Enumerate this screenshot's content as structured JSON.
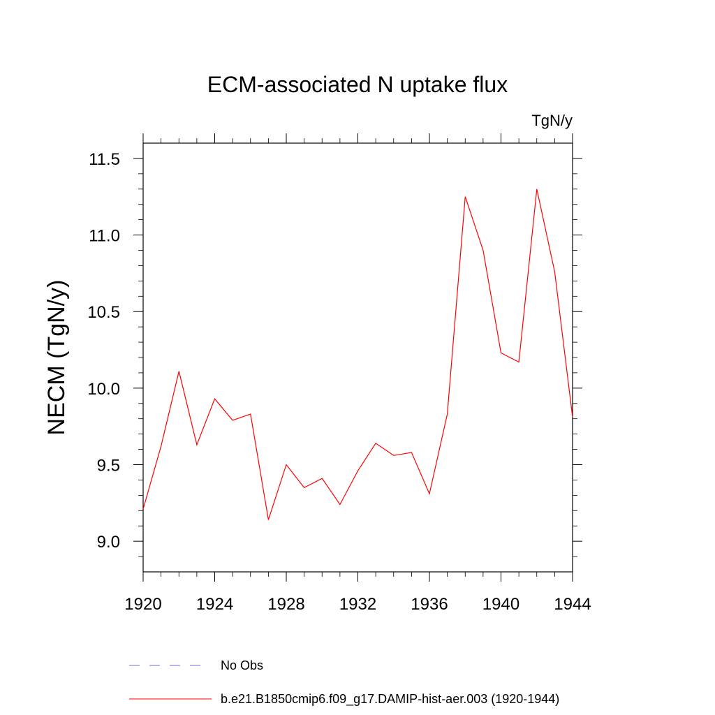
{
  "chart_data": {
    "type": "line",
    "title": "ECM-associated N uptake flux",
    "units_label": "TgN/y",
    "xlabel": "",
    "ylabel": "NECM  (TgN/y)",
    "xlim": [
      1920,
      1944
    ],
    "ylim": [
      8.8,
      11.6
    ],
    "x_ticks": [
      1920,
      1924,
      1928,
      1932,
      1936,
      1940,
      1944
    ],
    "y_ticks": [
      9.0,
      9.5,
      10.0,
      10.5,
      11.0,
      11.5
    ],
    "x_tick_labels": [
      "1920",
      "1924",
      "1928",
      "1932",
      "1936",
      "1940",
      "1944"
    ],
    "y_tick_labels": [
      "9.0",
      "9.5",
      "10.0",
      "10.5",
      "11.0",
      "11.5"
    ],
    "grid": false,
    "legend_placement": "bottom",
    "series": [
      {
        "name": "b.e21.B1850cmip6.f09_g17.DAMIP-hist-aer.003 (1920-1944)",
        "color": "#ff0000",
        "style": "solid",
        "x": [
          1920,
          1921,
          1922,
          1923,
          1924,
          1925,
          1926,
          1927,
          1928,
          1929,
          1930,
          1931,
          1932,
          1933,
          1934,
          1935,
          1936,
          1937,
          1938,
          1939,
          1940,
          1941,
          1942,
          1943,
          1944
        ],
        "y": [
          9.21,
          9.62,
          10.11,
          9.63,
          9.93,
          9.79,
          9.83,
          9.14,
          9.5,
          9.35,
          9.41,
          9.24,
          9.46,
          9.64,
          9.56,
          9.58,
          9.31,
          9.83,
          11.25,
          10.9,
          10.23,
          10.17,
          11.3,
          10.76,
          9.81
        ]
      }
    ],
    "legend": [
      {
        "label": "No Obs",
        "color": "#6f6fd8",
        "style": "dashed"
      },
      {
        "label": "b.e21.B1850cmip6.f09_g17.DAMIP-hist-aer.003 (1920-1944)",
        "color": "#ff0000",
        "style": "solid"
      }
    ]
  }
}
